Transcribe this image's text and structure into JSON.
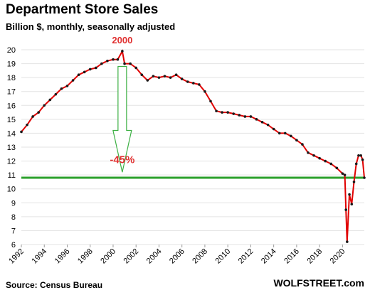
{
  "chart_data": {
    "type": "line",
    "title": "Department Store Sales",
    "subtitle": "Billion $, monthly, seasonally adjusted",
    "source": "Source: Census Bureau",
    "brand": "WOLFSTREET.com",
    "xlabel": "",
    "ylabel": "",
    "xlim": [
      1992,
      2021.9
    ],
    "ylim": [
      6,
      20
    ],
    "x_ticks": [
      "1992",
      "1994",
      "1996",
      "1998",
      "2000",
      "2002",
      "2004",
      "2006",
      "2008",
      "2010",
      "2012",
      "2014",
      "2016",
      "2018",
      "2020"
    ],
    "y_ticks": [
      "6",
      "7",
      "8",
      "9",
      "10",
      "11",
      "12",
      "13",
      "14",
      "15",
      "16",
      "17",
      "18",
      "19",
      "20"
    ],
    "grid": "horizontal",
    "annotations": {
      "peak_label": "2000",
      "peak": {
        "x": 2000.8,
        "y": 19.9
      },
      "drop_label": "-45%",
      "reference_level": 10.8
    },
    "colors": {
      "line": "#e00000",
      "markers": "#1a1a1a",
      "reference": "#2ca02c",
      "arrow": "#3cb043",
      "annotation": "#e03030"
    },
    "series": [
      {
        "x": [
          1992.0,
          1992.5,
          1993.0,
          1993.5,
          1994.0,
          1994.5,
          1995.0,
          1995.5,
          1996.0,
          1996.5,
          1997.0,
          1997.5,
          1998.0,
          1998.5,
          1999.0,
          1999.5,
          2000.0,
          2000.4,
          2000.8,
          2001.0,
          2001.5,
          2002.0,
          2002.5,
          2003.0,
          2003.5,
          2004.0,
          2004.5,
          2005.0,
          2005.5,
          2006.0,
          2006.5,
          2007.0,
          2007.5,
          2008.0,
          2008.5,
          2009.0,
          2009.5,
          2010.0,
          2010.5,
          2011.0,
          2011.5,
          2012.0,
          2012.5,
          2013.0,
          2013.5,
          2014.0,
          2014.5,
          2015.0,
          2015.5,
          2016.0,
          2016.5,
          2017.0,
          2017.5,
          2018.0,
          2018.5,
          2019.0,
          2019.5,
          2020.0,
          2020.2,
          2020.3,
          2020.4,
          2020.6,
          2020.8,
          2021.0,
          2021.2,
          2021.4,
          2021.6,
          2021.75,
          2021.9
        ],
        "y": [
          14.1,
          14.6,
          15.2,
          15.5,
          16.0,
          16.4,
          16.8,
          17.2,
          17.4,
          17.8,
          18.2,
          18.4,
          18.6,
          18.7,
          19.0,
          19.2,
          19.3,
          19.3,
          19.9,
          19.0,
          19.0,
          18.7,
          18.2,
          17.8,
          18.1,
          18.0,
          18.1,
          18.0,
          18.2,
          17.9,
          17.7,
          17.6,
          17.5,
          17.0,
          16.3,
          15.6,
          15.5,
          15.5,
          15.4,
          15.3,
          15.2,
          15.2,
          15.0,
          14.8,
          14.6,
          14.3,
          14.0,
          14.0,
          13.8,
          13.5,
          13.2,
          12.6,
          12.4,
          12.2,
          12.0,
          11.8,
          11.5,
          11.1,
          11.0,
          8.5,
          6.2,
          9.6,
          8.9,
          10.5,
          11.8,
          12.4,
          12.4,
          12.1,
          10.8
        ]
      }
    ]
  }
}
